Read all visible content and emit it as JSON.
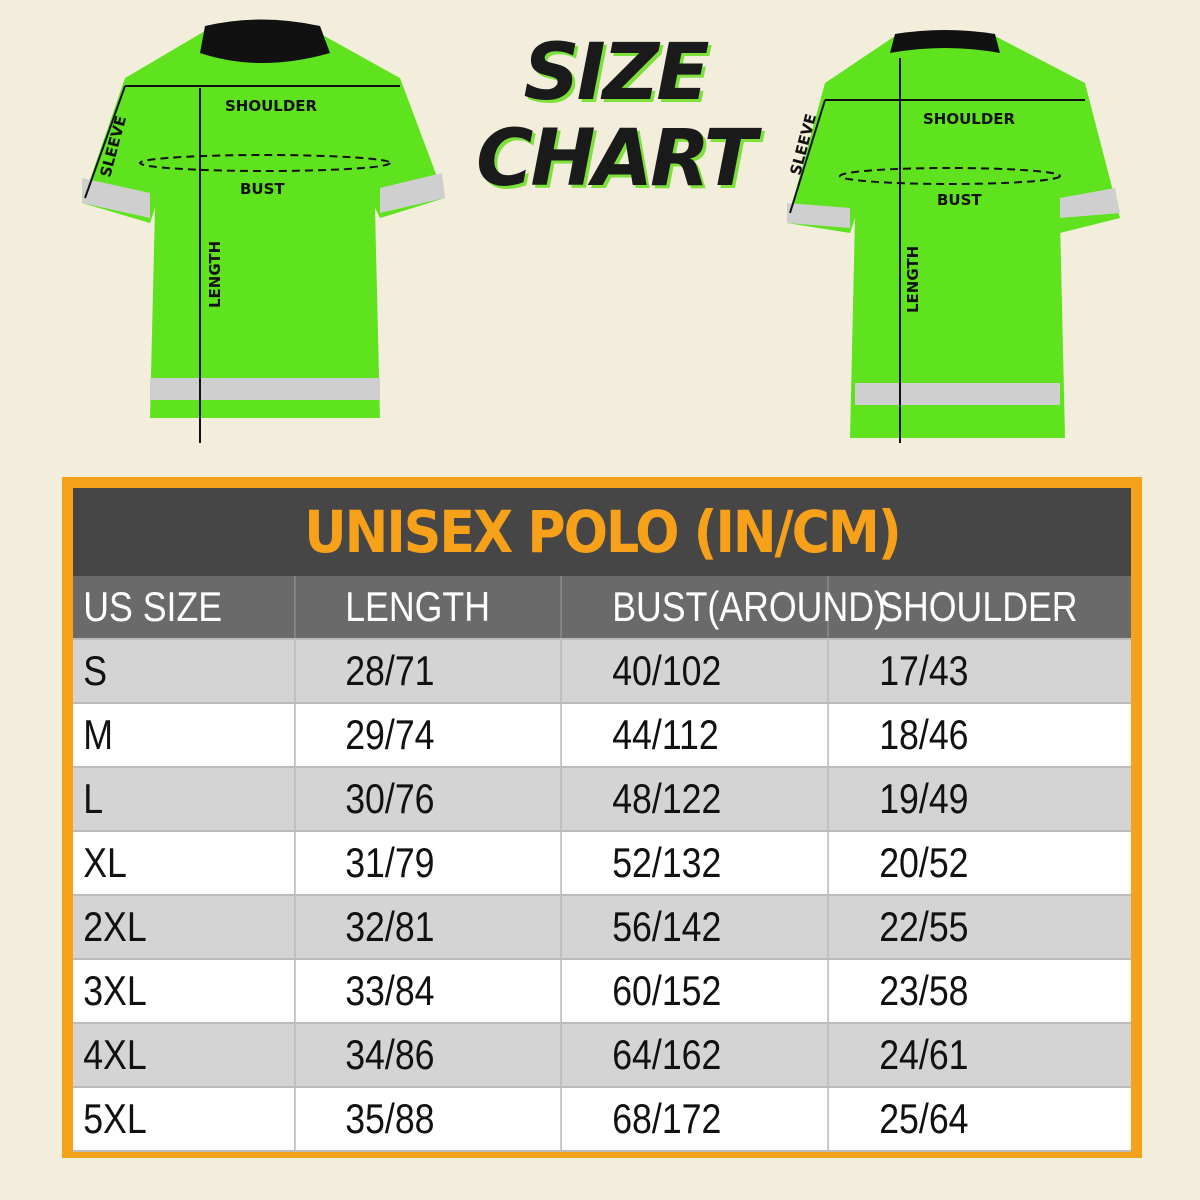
{
  "title": "SIZE CHART",
  "front_labels": {
    "shoulder": "SHOULDER",
    "sleeve": "SLEEVE",
    "bust": "BUST",
    "length": "LENGTH"
  },
  "back_labels": {
    "shoulder": "SHOULDER",
    "sleeve": "SLEEVE",
    "bust": "BUST",
    "length": "LENGTH"
  },
  "colors": {
    "shirt": "#5fe31e",
    "accent": "#f5a21b",
    "title_bar": "#464646",
    "header": "#6a6a6a"
  },
  "table": {
    "title": "UNISEX POLO (IN/CM)",
    "headers": [
      "US SIZE",
      "LENGTH",
      "BUST(AROUND)",
      "SHOULDER"
    ],
    "rows": [
      [
        "S",
        "28/71",
        "40/102",
        "17/43"
      ],
      [
        "M",
        "29/74",
        "44/112",
        "18/46"
      ],
      [
        "L",
        "30/76",
        "48/122",
        "19/49"
      ],
      [
        "XL",
        "31/79",
        "52/132",
        "20/52"
      ],
      [
        "2XL",
        "32/81",
        "56/142",
        "22/55"
      ],
      [
        "3XL",
        "33/84",
        "60/152",
        "23/58"
      ],
      [
        "4XL",
        "34/86",
        "64/162",
        "24/61"
      ],
      [
        "5XL",
        "35/88",
        "68/172",
        "25/64"
      ]
    ]
  }
}
